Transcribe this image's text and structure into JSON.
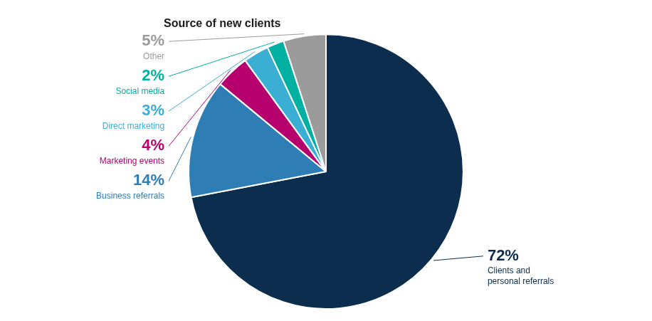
{
  "chart_data": {
    "type": "pie",
    "title": "Source of new clients",
    "categories": [
      "Clients and\npersonal referrals",
      "Business referrals",
      "Marketing events",
      "Direct marketing",
      "Social media",
      "Other"
    ],
    "values": [
      72,
      14,
      4,
      3,
      2,
      5
    ],
    "value_labels": [
      "72%",
      "14%",
      "4%",
      "3%",
      "2%",
      "5%"
    ],
    "colors": [
      "#0d2d4e",
      "#2e7db5",
      "#b5006e",
      "#3baed4",
      "#00b0a0",
      "#9b9b9b"
    ],
    "data_labels": true
  }
}
